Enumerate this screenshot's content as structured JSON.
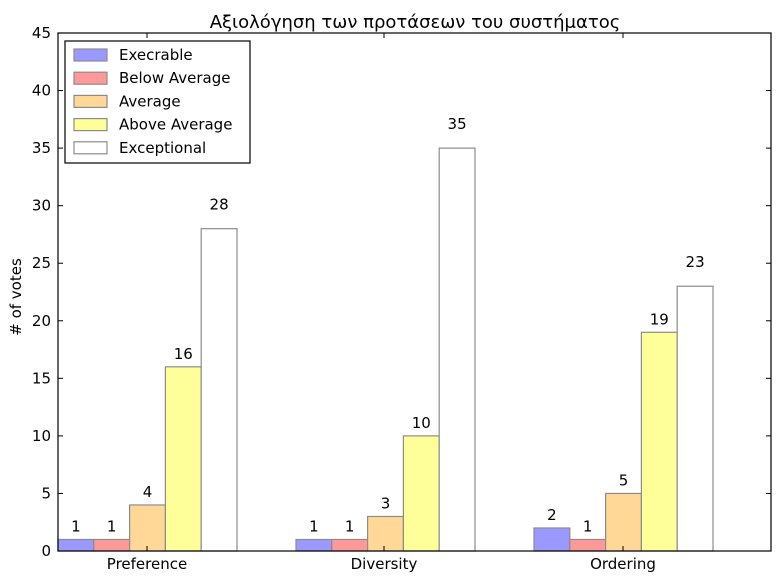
{
  "chart_data": {
    "type": "bar",
    "title": "Αξιολόγηση των προτάσεων του συστήματος",
    "xlabel": "",
    "ylabel": "# of votes",
    "ylim": [
      0,
      45
    ],
    "yticks": [
      0,
      5,
      10,
      15,
      20,
      25,
      30,
      35,
      40,
      45
    ],
    "categories": [
      "Preference",
      "Diversity",
      "Ordering"
    ],
    "grid": false,
    "legend_position": "top-left",
    "series": [
      {
        "name": "Execrable",
        "values": [
          1,
          1,
          2
        ],
        "color": "#9999ff"
      },
      {
        "name": "Below Average",
        "values": [
          1,
          1,
          1
        ],
        "color": "#ff9999"
      },
      {
        "name": "Average",
        "values": [
          4,
          3,
          5
        ],
        "color": "#ffd898"
      },
      {
        "name": "Above Average",
        "values": [
          16,
          10,
          19
        ],
        "color": "#ffff99"
      },
      {
        "name": "Exceptional",
        "values": [
          28,
          35,
          23
        ],
        "color": "#ffffff"
      }
    ]
  }
}
